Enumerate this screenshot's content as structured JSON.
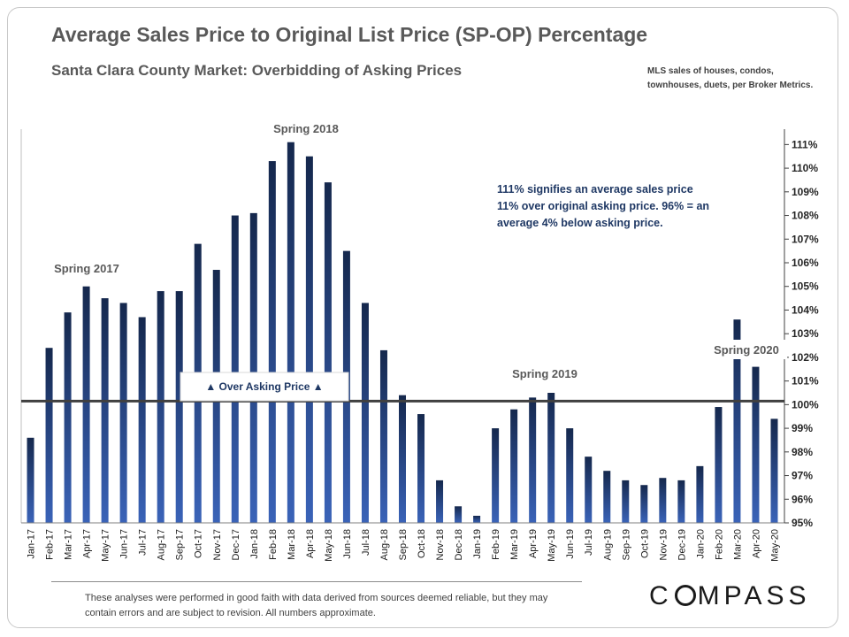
{
  "title": "Average Sales Price to Original List Price (SP-OP) Percentage",
  "subtitle": "Santa Clara County Market: Overbidding of Asking Prices",
  "source_note": "MLS sales of houses, condos, townhouses, duets, per Broker Metrics.",
  "footnote": "These analyses were performed in good faith with data derived from sources deemed reliable, but they may contain errors and are subject to revision. All numbers approximate.",
  "logo": {
    "pre": "C",
    "post": "MPASS"
  },
  "chart_data": {
    "type": "bar",
    "title": "Average Sales Price to Original List Price (SP-OP) Percentage",
    "categories": [
      "Jan-17",
      "Feb-17",
      "Mar-17",
      "Apr-17",
      "May-17",
      "Jun-17",
      "Jul-17",
      "Aug-17",
      "Sep-17",
      "Oct-17",
      "Nov-17",
      "Dec-17",
      "Jan-18",
      "Feb-18",
      "Mar-18",
      "Apr-18",
      "May-18",
      "Jun-18",
      "Jul-18",
      "Aug-18",
      "Sep-18",
      "Oct-18",
      "Nov-18",
      "Dec-18",
      "Jan-19",
      "Feb-19",
      "Mar-19",
      "Apr-19",
      "May-19",
      "Jun-19",
      "Jul-19",
      "Aug-19",
      "Sep-19",
      "Oct-19",
      "Nov-19",
      "Dec-19",
      "Jan-20",
      "Feb-20",
      "Mar-20",
      "Apr-20",
      "May-20"
    ],
    "values": [
      98.6,
      102.4,
      103.9,
      105.0,
      104.5,
      104.3,
      103.7,
      104.8,
      104.8,
      106.8,
      105.7,
      108.0,
      108.1,
      110.3,
      111.1,
      110.5,
      109.4,
      106.5,
      104.3,
      102.3,
      100.4,
      99.6,
      96.8,
      95.7,
      95.3,
      99.0,
      99.8,
      100.3,
      100.5,
      99.0,
      97.8,
      97.2,
      96.8,
      96.6,
      96.9,
      96.8,
      97.4,
      99.9,
      103.6,
      101.6,
      99.4
    ],
    "ylim": [
      95,
      111.5
    ],
    "yticks": [
      "95%",
      "96%",
      "97%",
      "98%",
      "99%",
      "100%",
      "101%",
      "102%",
      "103%",
      "104%",
      "105%",
      "106%",
      "107%",
      "108%",
      "109%",
      "110%",
      "111%"
    ],
    "ytick_values": [
      95,
      96,
      97,
      98,
      99,
      100,
      101,
      102,
      103,
      104,
      105,
      106,
      107,
      108,
      109,
      110,
      111
    ],
    "reference_line": 100.15,
    "bar_color_top": "#15284d",
    "bar_color_bottom": "#3a63b8",
    "axis_position": "right",
    "annotations": {
      "spring_2017": "Spring 2017",
      "spring_2018": "Spring 2018",
      "spring_2019": "Spring 2019",
      "spring_2020": "Spring 2020",
      "over_asking": "▲ Over Asking Price ▲",
      "explanation": "111% signifies an average sales price 11% over original asking price. 96% = an average 4% below asking price."
    }
  }
}
